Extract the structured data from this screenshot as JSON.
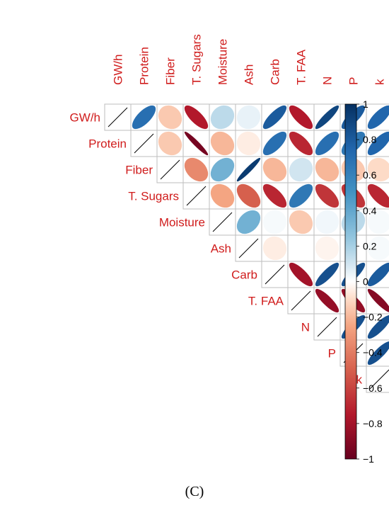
{
  "chart_data": {
    "type": "heatmap",
    "subtype": "correlation-ellipse-upper",
    "variables": [
      "GW/h",
      "Protein",
      "Fiber",
      "T. Sugars",
      "Moisture",
      "Ash",
      "Carb",
      "T. FAA",
      "N",
      "P",
      "k"
    ],
    "matrix": [
      [
        1,
        0.7,
        -0.15,
        -0.75,
        0.15,
        0.05,
        0.8,
        -0.75,
        0.9,
        0.8,
        0.75
      ],
      [
        0.7,
        1,
        -0.15,
        -0.95,
        -0.2,
        -0.05,
        0.7,
        -0.7,
        0.7,
        0.65,
        0.75
      ],
      [
        -0.15,
        -0.15,
        1,
        -0.35,
        0.35,
        0.95,
        -0.2,
        0.1,
        -0.2,
        -0.15,
        -0.1
      ],
      [
        -0.75,
        -0.95,
        -0.35,
        1,
        -0.25,
        -0.5,
        -0.7,
        0.65,
        -0.65,
        -0.65,
        -0.7
      ],
      [
        0.15,
        -0.2,
        0.35,
        -0.25,
        1,
        0.35,
        0.02,
        -0.15,
        0.03,
        0.15,
        0.02
      ],
      [
        0.05,
        -0.05,
        0.95,
        -0.5,
        0.35,
        1,
        -0.05,
        0.0,
        -0.03,
        0.0,
        0.02
      ],
      [
        0.8,
        0.7,
        -0.2,
        -0.7,
        0.02,
        -0.05,
        1,
        -0.8,
        0.85,
        0.85,
        0.8
      ],
      [
        -0.75,
        -0.7,
        0.1,
        0.65,
        -0.15,
        0.0,
        -0.8,
        1,
        -0.85,
        -0.85,
        -0.9
      ],
      [
        0.9,
        0.7,
        -0.2,
        -0.65,
        0.03,
        -0.03,
        0.85,
        -0.85,
        1,
        0.85,
        0.85
      ],
      [
        0.8,
        0.65,
        -0.15,
        -0.65,
        0.15,
        0.0,
        0.85,
        -0.85,
        0.85,
        1,
        0.85
      ],
      [
        0.75,
        0.75,
        -0.1,
        -0.7,
        0.02,
        0.02,
        0.8,
        -0.9,
        0.85,
        0.85,
        1
      ]
    ],
    "color_scale": {
      "min": -1,
      "max": 1,
      "low_color": "#67001f",
      "mid_color": "#ffffff",
      "high_color": "#053061"
    },
    "colorbar_ticks": [
      "1",
      "0.8",
      "0.6",
      "0.4",
      "0.2",
      "0",
      "−0.2",
      "−0.4",
      "−0.6",
      "−0.8",
      "−1"
    ],
    "label_color": "#d01c1c"
  },
  "caption": "(C)"
}
